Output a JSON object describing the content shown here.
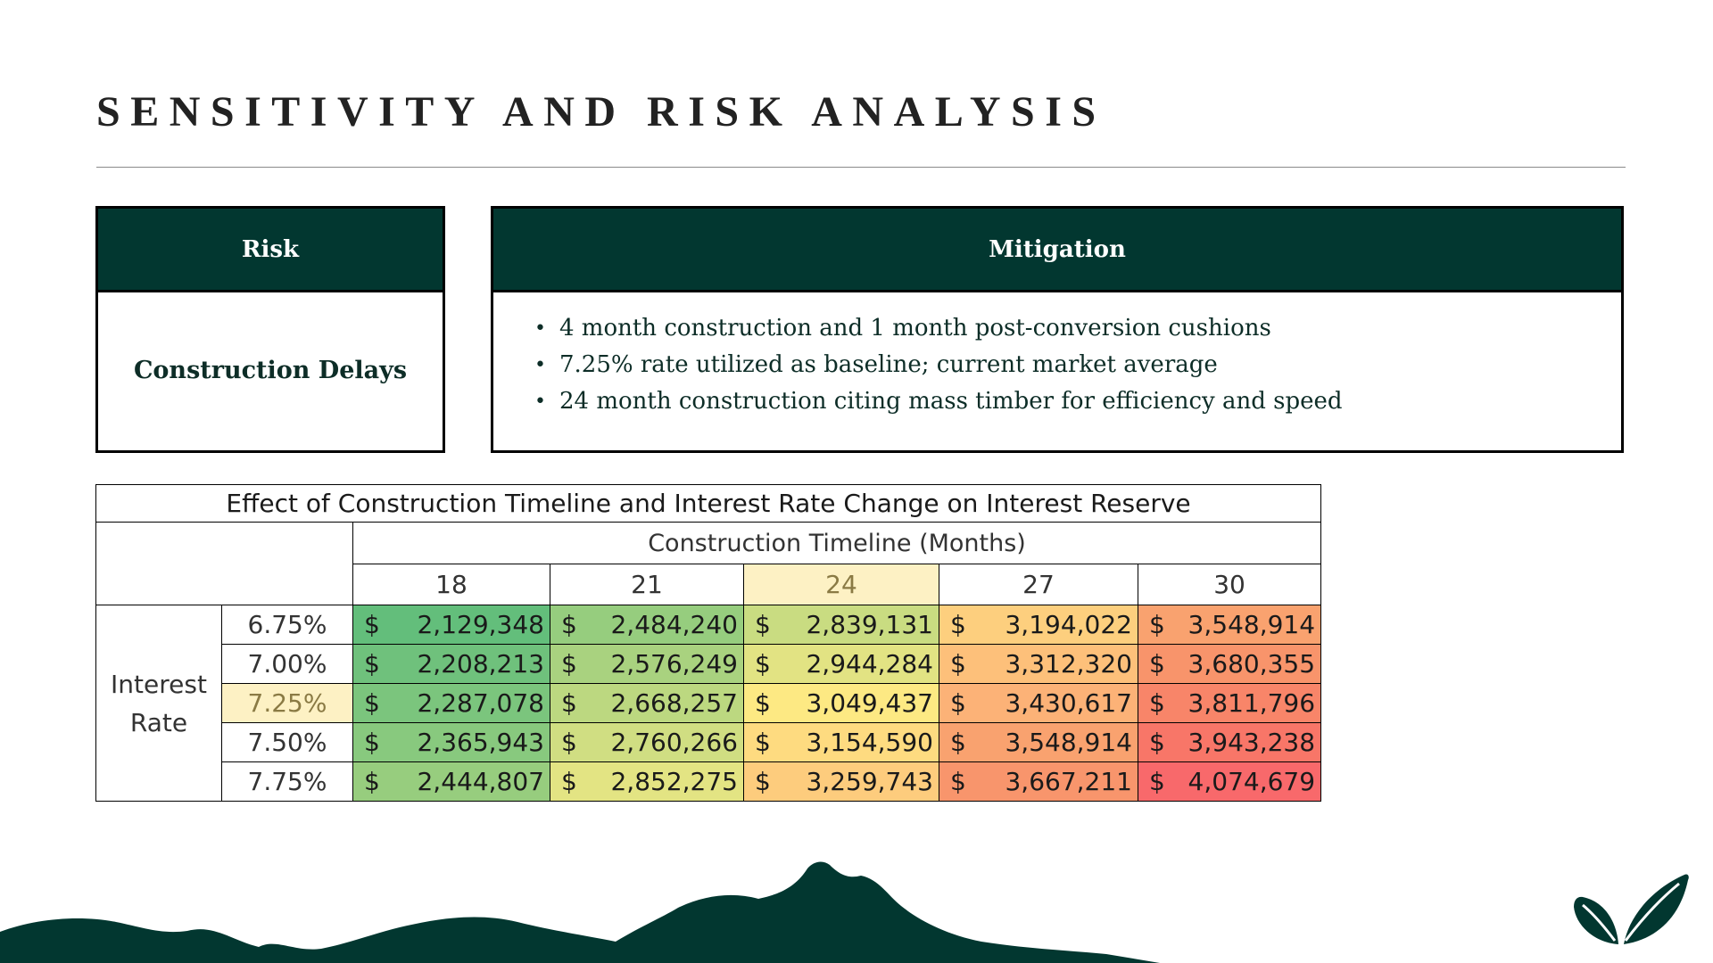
{
  "page": {
    "title": "SENSITIVITY AND RISK ANALYSIS"
  },
  "risk": {
    "header": "Risk",
    "item": "Construction Delays"
  },
  "mitigation": {
    "header": "Mitigation",
    "bullet": "•",
    "items": [
      "4 month construction and 1 month post-conversion cushions",
      "7.25% rate utilized as baseline; current market average",
      "24 month construction citing mass timber for efficiency and speed"
    ]
  },
  "sensitivity_table": {
    "title": "Effect of Construction Timeline and Interest Rate Change on Interest Reserve",
    "column_group_label": "Construction Timeline (Months)",
    "row_group_label": "Interest Rate",
    "currency_symbol": "$",
    "months": [
      "18",
      "21",
      "24",
      "27",
      "30"
    ],
    "highlight_month": "24",
    "highlight_rate": "7.25%",
    "rows": [
      {
        "rate": "6.75%",
        "values": [
          "2,129,348",
          "2,484,240",
          "2,839,131",
          "3,194,022",
          "3,548,914"
        ],
        "colors": [
          "#63be7b",
          "#96cd7e",
          "#c9dc81",
          "#fdcf7e",
          "#f9a26f"
        ]
      },
      {
        "rate": "7.00%",
        "values": [
          "2,208,213",
          "2,576,249",
          "2,944,284",
          "3,312,320",
          "3,680,355"
        ],
        "colors": [
          "#6fc17c",
          "#a9d27f",
          "#e2e383",
          "#fdc07a",
          "#f8946b"
        ]
      },
      {
        "rate": "7.25%",
        "values": [
          "2,287,078",
          "2,668,257",
          "3,049,437",
          "3,430,617",
          "3,811,796"
        ],
        "colors": [
          "#7bc57d",
          "#bcd880",
          "#fde983",
          "#fcb277",
          "#f88569"
        ]
      },
      {
        "rate": "7.50%",
        "values": [
          "2,365,943",
          "2,760,266",
          "3,154,590",
          "3,548,914",
          "3,943,238"
        ],
        "colors": [
          "#88c97e",
          "#d0de82",
          "#fedb80",
          "#f9a26f",
          "#f87668"
        ]
      },
      {
        "rate": "7.75%",
        "values": [
          "2,444,807",
          "2,852,275",
          "3,259,743",
          "3,667,211",
          "4,074,679"
        ],
        "colors": [
          "#97cd7e",
          "#e3e483",
          "#fdcc7d",
          "#f8956c",
          "#f8696b"
        ]
      }
    ]
  },
  "colors": {
    "brand_dark_green": "#023730",
    "highlight_yellow": "#fdf1c4"
  },
  "footer": {
    "logo": "leaf-logo-icon",
    "decoration": "mountain-silhouette"
  }
}
